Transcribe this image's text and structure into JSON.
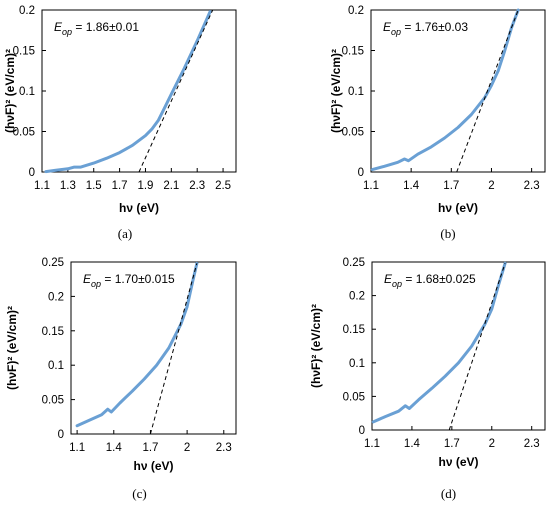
{
  "figure": {
    "colors": {
      "curve": "#6aa0d4",
      "fit": "#000000",
      "frame": "#000000"
    }
  },
  "chart_data": [
    {
      "type": "line",
      "caption": "(a)",
      "xlabel": "hν (eV)",
      "ylabel": "(hνF)² (eV/cm)²",
      "xlim": [
        1.1,
        2.6
      ],
      "ylim": [
        0,
        0.2
      ],
      "xticks": [
        1.1,
        1.3,
        1.5,
        1.7,
        1.9,
        2.1,
        2.3,
        2.5
      ],
      "xtick_labels": [
        "1.1",
        "1.3",
        "1.5",
        "1.7",
        "1.9",
        "2.1",
        "2.3",
        "2.5"
      ],
      "yticks": [
        0,
        0.05,
        0.1,
        0.15,
        0.2
      ],
      "ytick_labels": [
        "0",
        "0.05",
        "0.1",
        "0.15",
        "0.2"
      ],
      "annotation": {
        "symbol": "E",
        "subscript": "op",
        "value": " = 1.86±0.01"
      },
      "series": [
        {
          "style": "solid",
          "x": [
            1.13,
            1.2,
            1.3,
            1.35,
            1.4,
            1.5,
            1.6,
            1.7,
            1.8,
            1.9,
            1.95,
            2.0,
            2.05,
            2.1,
            2.2,
            2.3,
            2.4
          ],
          "y": [
            0.0005,
            0.002,
            0.004,
            0.006,
            0.006,
            0.011,
            0.017,
            0.024,
            0.033,
            0.045,
            0.053,
            0.064,
            0.08,
            0.096,
            0.128,
            0.162,
            0.198
          ]
        },
        {
          "style": "dashed",
          "x": [
            1.85,
            2.42
          ],
          "y": [
            0,
            0.2
          ]
        }
      ]
    },
    {
      "type": "line",
      "caption": "(b)",
      "xlabel": "hν (eV)",
      "ylabel": "(hνF)² (eV/cm)²",
      "xlim": [
        1.1,
        2.4
      ],
      "ylim": [
        0,
        0.2
      ],
      "xticks": [
        1.1,
        1.4,
        1.7,
        2.0,
        2.3
      ],
      "xtick_labels": [
        "1.1",
        "1.4",
        "1.7",
        "2",
        "2.3"
      ],
      "yticks": [
        0,
        0.05,
        0.1,
        0.15,
        0.2
      ],
      "ytick_labels": [
        "0",
        "0.05",
        "0.1",
        "0.15",
        "0.2"
      ],
      "annotation": {
        "symbol": "E",
        "subscript": "op",
        "value": " = 1.76±0.03"
      },
      "series": [
        {
          "style": "solid",
          "x": [
            1.11,
            1.2,
            1.3,
            1.35,
            1.38,
            1.45,
            1.55,
            1.65,
            1.75,
            1.85,
            1.95,
            2.0,
            2.05,
            2.1,
            2.15,
            2.2
          ],
          "y": [
            0.003,
            0.007,
            0.012,
            0.016,
            0.014,
            0.022,
            0.031,
            0.042,
            0.055,
            0.071,
            0.092,
            0.107,
            0.125,
            0.15,
            0.178,
            0.2
          ]
        },
        {
          "style": "dashed",
          "x": [
            1.74,
            2.2
          ],
          "y": [
            0,
            0.2
          ]
        }
      ]
    },
    {
      "type": "line",
      "caption": "(c)",
      "xlabel": "hν (eV)",
      "ylabel": "(hνF)² (eV/cm)²",
      "xlim": [
        1.05,
        2.4
      ],
      "ylim": [
        0,
        0.25
      ],
      "xticks": [
        1.1,
        1.4,
        1.7,
        2.0,
        2.3
      ],
      "xtick_labels": [
        "1.1",
        "1.4",
        "1.7",
        "2",
        "2.3"
      ],
      "yticks": [
        0,
        0.05,
        0.1,
        0.15,
        0.2,
        0.25
      ],
      "ytick_labels": [
        "0",
        "0.05",
        "0.1",
        "0.15",
        "0.2",
        "0.25"
      ],
      "annotation": {
        "symbol": "E",
        "subscript": "op",
        "value": " = 1.70±0.015"
      },
      "series": [
        {
          "style": "solid",
          "x": [
            1.1,
            1.2,
            1.3,
            1.35,
            1.38,
            1.45,
            1.55,
            1.65,
            1.75,
            1.85,
            1.95,
            2.0,
            2.05,
            2.08
          ],
          "y": [
            0.012,
            0.02,
            0.028,
            0.036,
            0.032,
            0.045,
            0.062,
            0.08,
            0.1,
            0.125,
            0.16,
            0.185,
            0.225,
            0.248
          ]
        },
        {
          "style": "dashed",
          "x": [
            1.7,
            2.08
          ],
          "y": [
            0,
            0.248
          ]
        }
      ]
    },
    {
      "type": "line",
      "caption": "(d)",
      "xlabel": "hν (eV)",
      "ylabel": "(hνF)² (eV/cm)²",
      "xlim": [
        1.1,
        2.4
      ],
      "ylim": [
        0,
        0.25
      ],
      "xticks": [
        1.1,
        1.4,
        1.7,
        2.0,
        2.3
      ],
      "xtick_labels": [
        "1.1",
        "1.4",
        "1.7",
        "2",
        "2.3"
      ],
      "yticks": [
        0,
        0.05,
        0.1,
        0.15,
        0.2,
        0.25
      ],
      "ytick_labels": [
        "0",
        "0.05",
        "0.1",
        "0.15",
        "0.2",
        "0.25"
      ],
      "annotation": {
        "symbol": "E",
        "subscript": "op",
        "value": " = 1.68±0.025"
      },
      "series": [
        {
          "style": "solid",
          "x": [
            1.11,
            1.2,
            1.3,
            1.35,
            1.38,
            1.45,
            1.55,
            1.65,
            1.75,
            1.85,
            1.95,
            2.0,
            2.05,
            2.1
          ],
          "y": [
            0.012,
            0.02,
            0.028,
            0.036,
            0.032,
            0.045,
            0.062,
            0.08,
            0.1,
            0.125,
            0.158,
            0.18,
            0.215,
            0.248
          ]
        },
        {
          "style": "dashed",
          "x": [
            1.68,
            2.1
          ],
          "y": [
            0,
            0.248
          ]
        }
      ]
    }
  ]
}
